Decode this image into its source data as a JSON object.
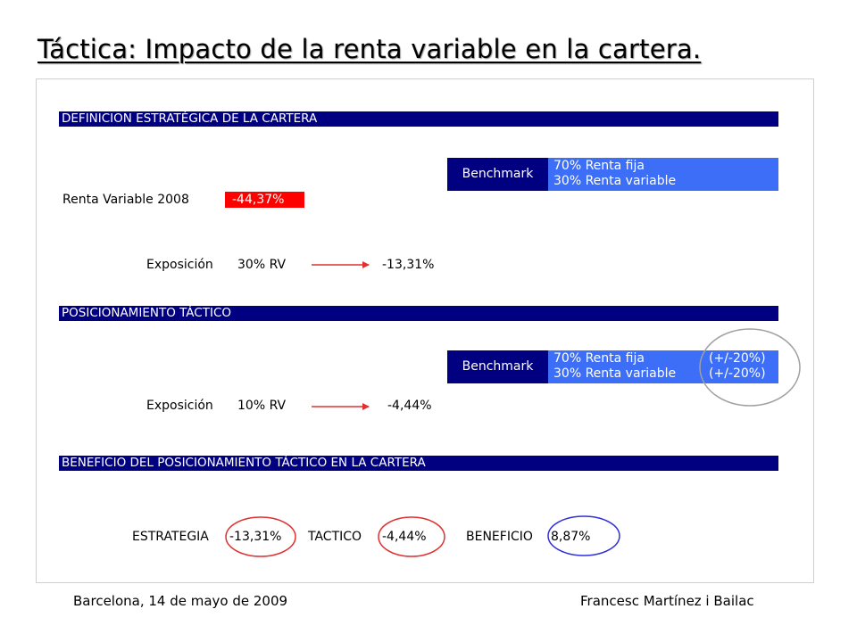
{
  "title": "Táctica: Impacto de la renta variable en la cartera.",
  "sections": {
    "estrategica": "DEFINICION ESTRATÉGICA DE LA CARTERA",
    "tactico": "POSICIONAMIENTO TÁCTICO",
    "beneficio": "BENEFICIO DEL POSICIONAMIENTO TÁCTICO EN LA CARTERA"
  },
  "benchmark1": {
    "label": "Benchmark",
    "line1": "70% Renta fija",
    "line2": "30% Renta variable"
  },
  "benchmark2": {
    "label": "Benchmark",
    "line1": "70% Renta fija",
    "line2": "30% Renta variable",
    "range1": "(+/-20%)",
    "range2": "(+/-20%)"
  },
  "renta_variable": {
    "label": "Renta Variable 2008",
    "value": "-44,37%"
  },
  "exposicion1": {
    "label": "Exposición",
    "rv": "30% RV",
    "result": "-13,31%"
  },
  "exposicion2": {
    "label": "Exposición",
    "rv": "10% RV",
    "result": "-4,44%"
  },
  "beneficio": {
    "estrategia_label": "ESTRATEGIA",
    "estrategia_value": "-13,31%",
    "tactico_label": "TACTICO",
    "tactico_value": "-4,44%",
    "beneficio_label": "BENEFICIO",
    "beneficio_value": "8,87%"
  },
  "footer": {
    "left": "Barcelona, 14 de mayo de 2009",
    "right": "Francesc Martínez i Bailac"
  },
  "colors": {
    "navy": "#000080",
    "blue": "#3d6ef7",
    "red": "#ff0000",
    "circle_red": "#e03030",
    "circle_blue": "#3030d8",
    "circle_gray": "#a0a0a0"
  }
}
